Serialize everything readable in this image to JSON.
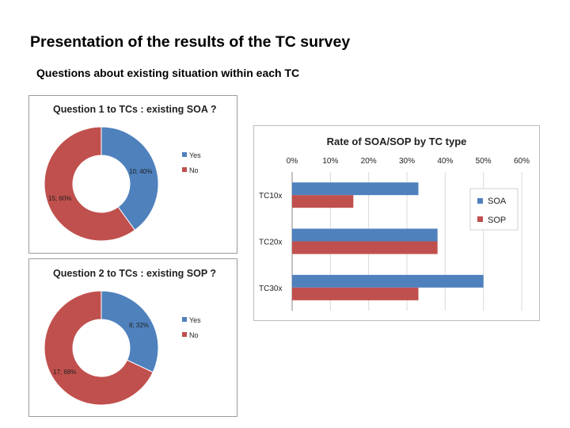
{
  "page": {
    "title": "Presentation of the results of the TC survey",
    "subtitle": "Questions about existing situation within each TC"
  },
  "colors": {
    "blue": "#4f81bd",
    "red": "#c0504d",
    "axis": "#868686",
    "grid": "#d9d9d9",
    "label": "#1f1f1f"
  },
  "chart_data": [
    {
      "type": "pie",
      "variant": "doughnut",
      "title": "Question 1 to TCs : existing SOA ?",
      "categories": [
        "Yes",
        "No"
      ],
      "values": [
        10,
        15
      ],
      "percent_labels": [
        "40%",
        "60%"
      ],
      "data_labels": [
        "10; 40%",
        "15; 60%"
      ],
      "legend": [
        "Yes",
        "No"
      ],
      "legend_position": "right"
    },
    {
      "type": "pie",
      "variant": "doughnut",
      "title": "Question 2 to TCs : existing SOP ?",
      "categories": [
        "Yes",
        "No"
      ],
      "values": [
        8,
        17
      ],
      "percent_labels": [
        "32%",
        "68%"
      ],
      "data_labels": [
        "8; 32%",
        "17; 68%"
      ],
      "legend": [
        "Yes",
        "No"
      ],
      "legend_position": "right"
    },
    {
      "type": "bar",
      "orientation": "horizontal",
      "title": "Rate of SOA/SOP by TC type",
      "categories": [
        "TC10x",
        "TC20x",
        "TC30x"
      ],
      "series": [
        {
          "name": "SOA",
          "values": [
            33,
            38,
            50
          ]
        },
        {
          "name": "SOP",
          "values": [
            16,
            38,
            33
          ]
        }
      ],
      "xlim": [
        0,
        60
      ],
      "xticks": [
        "0%",
        "10%",
        "20%",
        "30%",
        "40%",
        "50%",
        "60%"
      ],
      "axis_position": "top",
      "grid": true,
      "legend_position": "right"
    }
  ]
}
